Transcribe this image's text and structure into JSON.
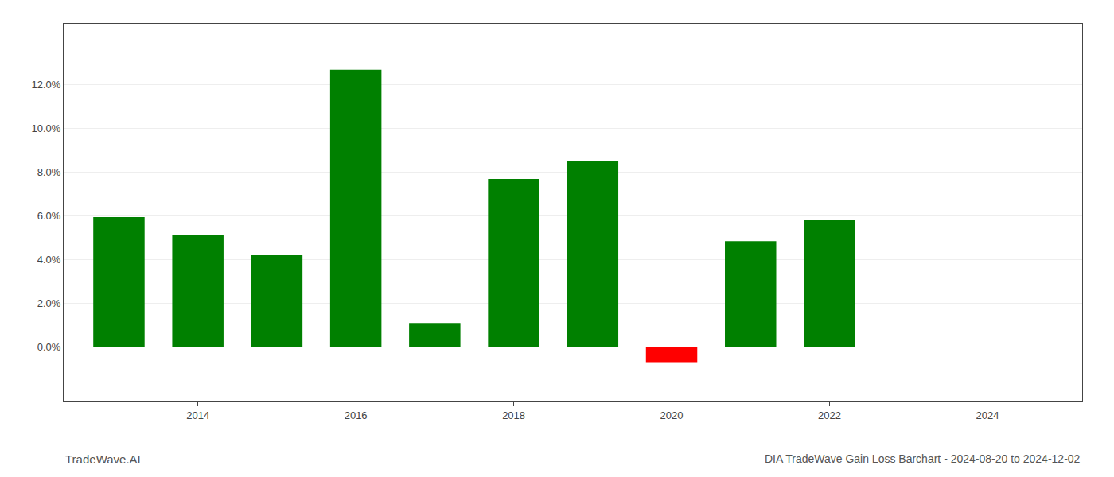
{
  "chart_data": {
    "type": "bar",
    "title": "DIA TradeWave Gain Loss Barchart - 2024-08-20 to 2024-12-02",
    "annotations": [
      "TradeWave.AI"
    ],
    "x": [
      2013.0,
      2014.0,
      2015.0,
      2016.0,
      2017.0,
      2018.0,
      2019.0,
      2020.0,
      2021.0,
      2022.0,
      2023.0
    ],
    "values": [
      0.0595,
      0.0515,
      0.042,
      0.127,
      0.011,
      0.077,
      0.085,
      -0.007,
      0.0485,
      0.058,
      null
    ],
    "colors": [
      "#008000",
      "#008000",
      "#008000",
      "#008000",
      "#008000",
      "#008000",
      "#008000",
      "#ff0000",
      "#008000",
      "#008000",
      null
    ],
    "xlim": [
      2012.3,
      2025.2
    ],
    "xticks": [
      2014,
      2016,
      2018,
      2020,
      2022,
      2024
    ],
    "ylim": [
      -0.025,
      0.148
    ],
    "yticks": [
      {
        "value": 0.0,
        "label": "0.0%"
      },
      {
        "value": 0.02,
        "label": "2.0%"
      },
      {
        "value": 0.04,
        "label": "4.0%"
      },
      {
        "value": 0.06,
        "label": "6.0%"
      },
      {
        "value": 0.08,
        "label": "8.0%"
      },
      {
        "value": 0.1,
        "label": "10.0%"
      },
      {
        "value": 0.12,
        "label": "12.0%"
      }
    ],
    "grid": true
  }
}
